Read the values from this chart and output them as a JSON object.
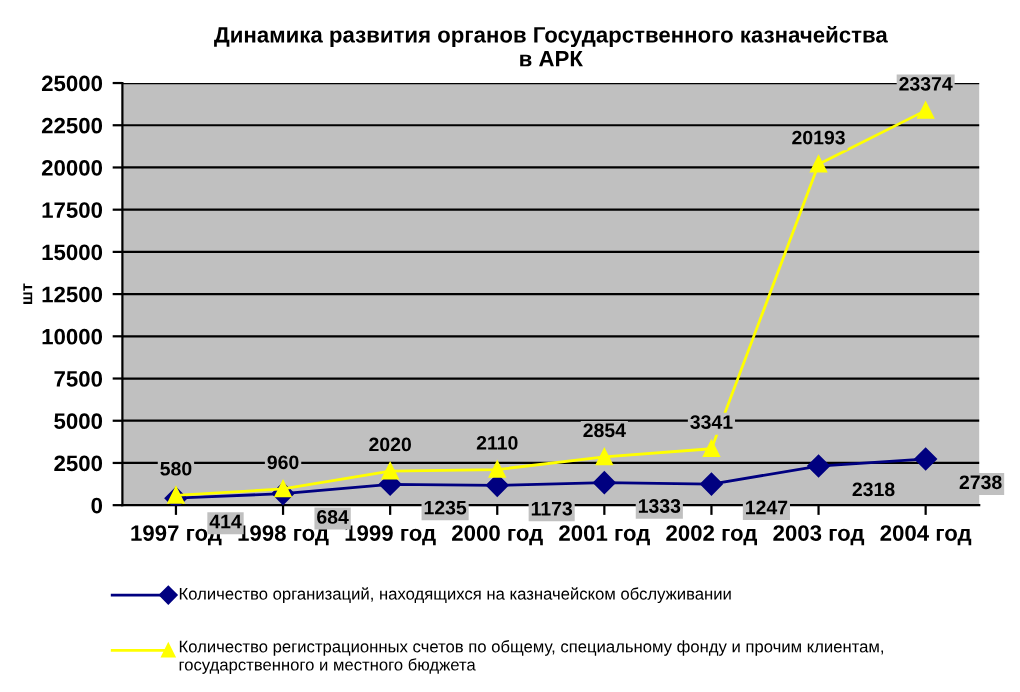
{
  "chart_data": {
    "type": "line",
    "title": "Динамика развития органов Государственного казначейства\nв АРК",
    "ylabel": "шт",
    "categories": [
      "1997 год",
      "1998 год",
      "1999 год",
      "2000 год",
      "2001 год",
      "2002 год",
      "2003 год",
      "2004 год"
    ],
    "series": [
      {
        "name": "Количество организаций, находящихся на казначейском обслуживании",
        "color": "#000080",
        "marker": "diamond",
        "values": [
          414,
          684,
          1235,
          1173,
          1333,
          1247,
          2318,
          2738
        ]
      },
      {
        "name": "Количество регистрационных счетов по общему, специальному фонду и прочим клиентам, государственного и местного бюджета",
        "color": "#ffff00",
        "marker": "triangle",
        "values": [
          580,
          960,
          2020,
          2110,
          2854,
          3341,
          20193,
          23374
        ]
      }
    ],
    "ylim": [
      0,
      25000
    ],
    "yticks": [
      0,
      2500,
      5000,
      7500,
      10000,
      12500,
      15000,
      17500,
      20000,
      22500,
      25000
    ],
    "grid": "y",
    "legend": "bottom",
    "data_labels": true
  }
}
